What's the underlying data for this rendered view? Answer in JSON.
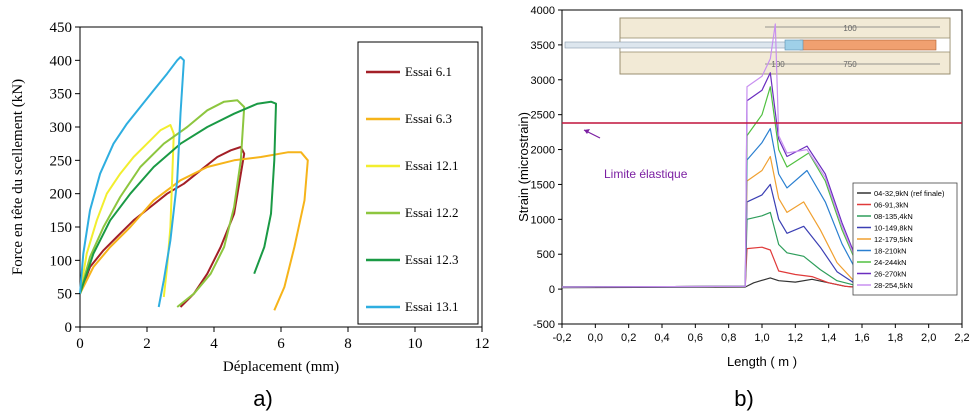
{
  "chart_data": [
    {
      "type": "line",
      "panel_label": "a)",
      "xlabel": "Déplacement (mm)",
      "ylabel": "Force en tête du scellement (kN)",
      "xlim": [
        0,
        12
      ],
      "ylim": [
        0,
        450
      ],
      "xticks": [
        "0",
        "2",
        "4",
        "6",
        "8",
        "10",
        "12"
      ],
      "yticks": [
        "0",
        "50",
        "100",
        "150",
        "200",
        "250",
        "300",
        "350",
        "400",
        "450"
      ],
      "grid": false,
      "legend_position": "right",
      "series": [
        {
          "name": "Essai 6.1",
          "color": "#a31f27",
          "x": [
            0.0,
            0.3,
            0.7,
            1.1,
            1.6,
            2.1,
            2.6,
            3.1,
            3.6,
            4.1,
            4.5,
            4.8,
            4.9,
            4.6,
            4.2,
            3.8,
            3.4,
            3.0
          ],
          "y": [
            50,
            90,
            115,
            135,
            160,
            180,
            200,
            215,
            235,
            255,
            265,
            270,
            260,
            170,
            120,
            80,
            50,
            30
          ]
        },
        {
          "name": "Essai 6.3",
          "color": "#f6b41a",
          "x": [
            0.0,
            0.4,
            0.9,
            1.5,
            2.2,
            3.0,
            3.8,
            4.6,
            5.4,
            6.2,
            6.6,
            6.8,
            6.7,
            6.4,
            6.1,
            5.8
          ],
          "y": [
            50,
            90,
            120,
            150,
            190,
            220,
            240,
            250,
            255,
            262,
            262,
            250,
            190,
            120,
            60,
            25
          ]
        },
        {
          "name": "Essai 12.1",
          "color": "#f2ee2e",
          "x": [
            0.0,
            0.2,
            0.5,
            0.8,
            1.2,
            1.6,
            2.0,
            2.4,
            2.7,
            2.8,
            2.75,
            2.7,
            2.6,
            2.5
          ],
          "y": [
            50,
            110,
            160,
            200,
            230,
            255,
            275,
            295,
            303,
            290,
            220,
            150,
            90,
            45
          ]
        },
        {
          "name": "Essai 12.2",
          "color": "#8dc63f",
          "x": [
            0.0,
            0.3,
            0.7,
            1.2,
            1.8,
            2.5,
            3.2,
            3.8,
            4.3,
            4.7,
            4.9,
            4.8,
            4.6,
            4.3,
            3.9,
            3.4,
            2.9
          ],
          "y": [
            50,
            105,
            150,
            195,
            240,
            275,
            300,
            325,
            338,
            340,
            330,
            250,
            180,
            120,
            80,
            50,
            30
          ]
        },
        {
          "name": "Essai 12.3",
          "color": "#1a9a45",
          "x": [
            0.0,
            0.4,
            0.9,
            1.5,
            2.2,
            3.0,
            3.8,
            4.6,
            5.3,
            5.7,
            5.85,
            5.8,
            5.7,
            5.5,
            5.2
          ],
          "y": [
            50,
            110,
            160,
            200,
            240,
            275,
            300,
            320,
            335,
            338,
            335,
            250,
            170,
            120,
            80
          ]
        },
        {
          "name": "Essai 13.1",
          "color": "#2eaee0",
          "x": [
            0.0,
            0.1,
            0.3,
            0.6,
            1.0,
            1.4,
            1.8,
            2.2,
            2.6,
            2.9,
            3.0,
            3.1,
            3.0,
            2.9,
            2.7,
            2.5,
            2.35
          ],
          "y": [
            50,
            110,
            175,
            230,
            275,
            305,
            330,
            355,
            380,
            400,
            405,
            400,
            320,
            220,
            130,
            70,
            30
          ]
        }
      ]
    },
    {
      "type": "line",
      "panel_label": "b)",
      "xlabel": "Length ( m )",
      "ylabel": "Strain (microstrain)",
      "xlim": [
        -0.2,
        2.2
      ],
      "ylim": [
        -500,
        4000
      ],
      "xticks": [
        "-0,2",
        "0,0",
        "0,2",
        "0,4",
        "0,6",
        "0,8",
        "1,0",
        "1,2",
        "1,4",
        "1,6",
        "1,8",
        "2,0",
        "2,2"
      ],
      "yticks": [
        "-500",
        "0",
        "500",
        "1000",
        "1500",
        "2000",
        "2500",
        "3000",
        "3500",
        "4000"
      ],
      "grid": false,
      "legend_position": "middle-right",
      "annotation": {
        "text": "Limite élastique",
        "y": 2380,
        "color": "#c0143c",
        "text_color": "#7b1fa2"
      },
      "inset_labels": [
        "100",
        "100",
        "750"
      ],
      "series": [
        {
          "name": "04-32,9kN (ref finale)",
          "color": "#333333",
          "x": [
            -0.2,
            0.9,
            0.95,
            1.05,
            1.1,
            1.2,
            1.3,
            1.4,
            1.5,
            1.6,
            2.0
          ],
          "y": [
            20,
            30,
            90,
            160,
            120,
            100,
            140,
            90,
            40,
            20,
            0
          ]
        },
        {
          "name": "06-91,3kN",
          "color": "#e03a3a",
          "x": [
            -0.2,
            0.9,
            0.91,
            1.0,
            1.05,
            1.1,
            1.2,
            1.3,
            1.4,
            1.5,
            1.6,
            2.0
          ],
          "y": [
            30,
            40,
            580,
            600,
            560,
            260,
            210,
            180,
            90,
            40,
            20,
            0
          ]
        },
        {
          "name": "08-135,4kN",
          "color": "#2e9e5b",
          "x": [
            -0.2,
            0.9,
            0.91,
            1.0,
            1.05,
            1.1,
            1.15,
            1.25,
            1.35,
            1.45,
            1.55,
            1.65,
            2.0
          ],
          "y": [
            30,
            40,
            1000,
            1050,
            1100,
            640,
            520,
            470,
            280,
            120,
            60,
            20,
            0
          ]
        },
        {
          "name": "10-149,8kN",
          "color": "#3b3fb4",
          "x": [
            -0.2,
            0.9,
            0.91,
            1.0,
            1.05,
            1.1,
            1.15,
            1.25,
            1.35,
            1.45,
            1.55,
            1.65,
            2.0
          ],
          "y": [
            30,
            40,
            1250,
            1350,
            1500,
            1000,
            800,
            900,
            600,
            250,
            90,
            20,
            0
          ]
        },
        {
          "name": "12-179,5kN",
          "color": "#f0a030",
          "x": [
            -0.2,
            0.9,
            0.91,
            1.0,
            1.05,
            1.1,
            1.15,
            1.25,
            1.35,
            1.45,
            1.55,
            1.65,
            2.0
          ],
          "y": [
            30,
            40,
            1550,
            1700,
            1900,
            1300,
            1100,
            1250,
            850,
            380,
            120,
            20,
            0
          ]
        },
        {
          "name": "18-210kN",
          "color": "#2a7fd0",
          "x": [
            -0.2,
            0.9,
            0.91,
            1.0,
            1.05,
            1.1,
            1.15,
            1.27,
            1.38,
            1.48,
            1.58,
            1.68,
            2.0
          ],
          "y": [
            30,
            40,
            1850,
            2100,
            2300,
            1650,
            1450,
            1700,
            1250,
            650,
            200,
            30,
            0
          ]
        },
        {
          "name": "24-244kN",
          "color": "#50c040",
          "x": [
            -0.2,
            0.9,
            0.91,
            1.0,
            1.05,
            1.1,
            1.15,
            1.28,
            1.38,
            1.48,
            1.58,
            1.7,
            2.0
          ],
          "y": [
            30,
            40,
            2200,
            2500,
            2900,
            2000,
            1750,
            1950,
            1550,
            850,
            300,
            40,
            0
          ]
        },
        {
          "name": "26-270kN",
          "color": "#6a2dbf",
          "x": [
            -0.2,
            0.9,
            0.91,
            1.0,
            1.05,
            1.1,
            1.15,
            1.27,
            1.38,
            1.48,
            1.58,
            1.7,
            2.0
          ],
          "y": [
            30,
            40,
            2700,
            2850,
            3100,
            2150,
            1900,
            2050,
            1650,
            950,
            350,
            50,
            0
          ]
        },
        {
          "name": "28-254,5kN",
          "color": "#c890f0",
          "x": [
            -0.2,
            0.9,
            0.91,
            1.0,
            1.05,
            1.08,
            1.1,
            1.15,
            1.27,
            1.38,
            1.48,
            1.58,
            1.7,
            2.0
          ],
          "y": [
            30,
            40,
            2900,
            3050,
            3300,
            3800,
            2200,
            1950,
            2000,
            1600,
            900,
            320,
            40,
            0
          ]
        }
      ]
    }
  ]
}
